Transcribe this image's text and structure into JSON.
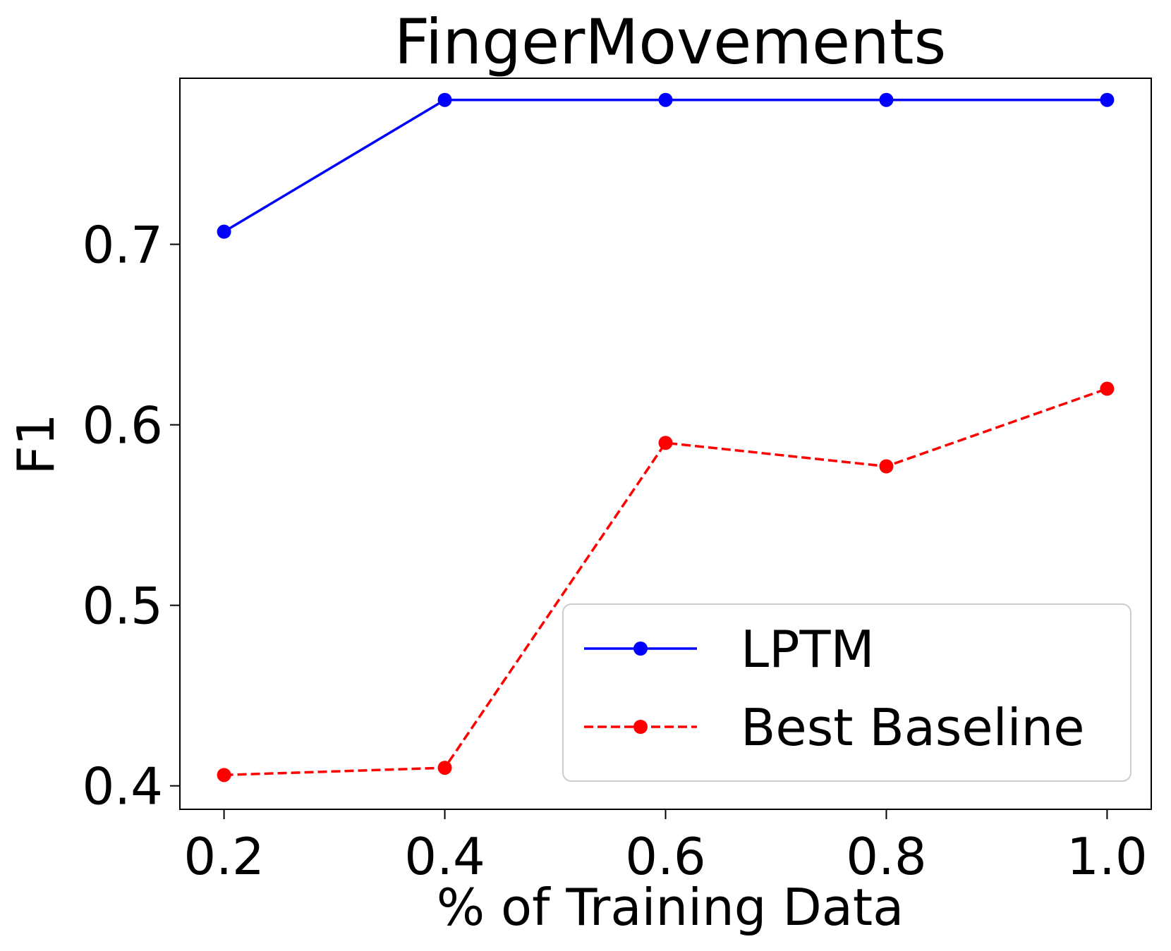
{
  "chart_data": {
    "type": "line",
    "title": "FingerMovements",
    "xlabel": "% of Training Data",
    "ylabel": "F1",
    "x": [
      0.2,
      0.4,
      0.6,
      0.8,
      1.0
    ],
    "xticks": [
      "0.2",
      "0.4",
      "0.6",
      "0.8",
      "1.0"
    ],
    "yticks": [
      {
        "value": 0.4,
        "label": "0.4"
      },
      {
        "value": 0.5,
        "label": "0.5"
      },
      {
        "value": 0.6,
        "label": "0.6"
      },
      {
        "value": 0.7,
        "label": "0.7"
      }
    ],
    "xlim": [
      0.16,
      1.04
    ],
    "ylim": [
      0.387,
      0.792
    ],
    "grid": false,
    "legend_position": "lower-right",
    "series": [
      {
        "name": "LPTM",
        "values": [
          0.707,
          0.78,
          0.78,
          0.78,
          0.78
        ],
        "color": "#0000ff",
        "linestyle": "solid",
        "marker": "circle"
      },
      {
        "name": "Best Baseline",
        "values": [
          0.406,
          0.41,
          0.59,
          0.577,
          0.62
        ],
        "color": "#ff0000",
        "linestyle": "dashed",
        "marker": "circle"
      }
    ]
  }
}
